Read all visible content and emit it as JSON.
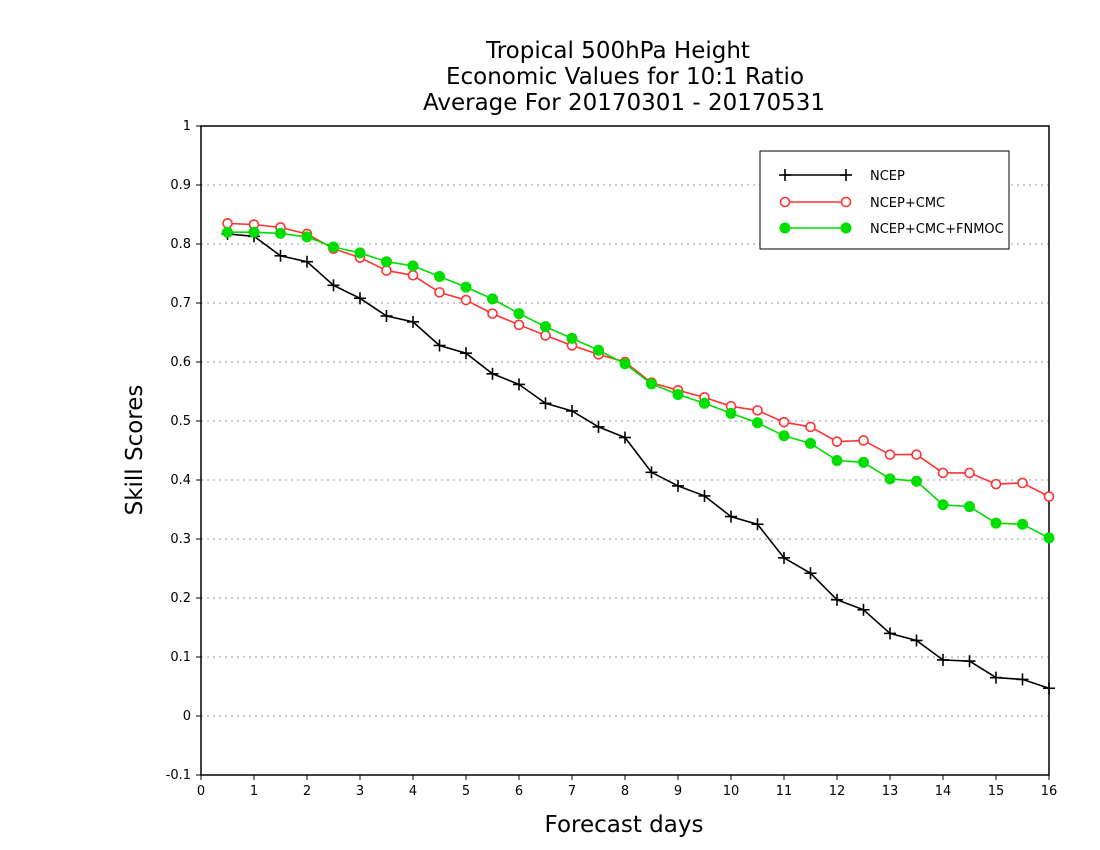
{
  "chart_data": {
    "type": "line",
    "title": [
      "Tropical 500hPa Height",
      "Economic Values for 10:1 Ratio",
      "Average For 20170301 - 20170531"
    ],
    "xlabel": "Forecast days",
    "ylabel": "Skill Scores",
    "xlim": [
      0,
      16
    ],
    "ylim": [
      -0.1,
      1
    ],
    "xticks": [
      "0",
      "1",
      "2",
      "3",
      "4",
      "5",
      "6",
      "7",
      "8",
      "9",
      "10",
      "11",
      "12",
      "13",
      "14",
      "15",
      "16"
    ],
    "yticks": [
      "-0.1",
      "0",
      "0.1",
      "0.2",
      "0.3",
      "0.4",
      "0.5",
      "0.6",
      "0.7",
      "0.8",
      "0.9",
      "1"
    ],
    "grid": "horizontal dotted",
    "legend_position": "top-right",
    "x": [
      0.5,
      1,
      1.5,
      2,
      2.5,
      3,
      3.5,
      4,
      4.5,
      5,
      5.5,
      6,
      6.5,
      7,
      7.5,
      8,
      8.5,
      9,
      9.5,
      10,
      10.5,
      11,
      11.5,
      12,
      12.5,
      13,
      13.5,
      14,
      14.5,
      15,
      15.5,
      16
    ],
    "series": [
      {
        "name": "NCEP",
        "color": "#000000",
        "marker": "plus",
        "values": [
          0.817,
          0.813,
          0.78,
          0.77,
          0.73,
          0.708,
          0.678,
          0.668,
          0.628,
          0.615,
          0.58,
          0.562,
          0.53,
          0.517,
          0.49,
          0.472,
          0.413,
          0.39,
          0.373,
          0.338,
          0.325,
          0.268,
          0.242,
          0.197,
          0.18,
          0.14,
          0.128,
          0.095,
          0.093,
          0.065,
          0.062,
          0.047
        ]
      },
      {
        "name": "NCEP+CMC",
        "color": "#ff3333",
        "marker": "open-circle",
        "values": [
          0.835,
          0.833,
          0.828,
          0.817,
          0.792,
          0.777,
          0.755,
          0.747,
          0.718,
          0.705,
          0.682,
          0.663,
          0.645,
          0.628,
          0.613,
          0.6,
          0.565,
          0.552,
          0.54,
          0.525,
          0.518,
          0.498,
          0.49,
          0.465,
          0.467,
          0.443,
          0.443,
          0.412,
          0.412,
          0.393,
          0.395,
          0.372
        ]
      },
      {
        "name": "NCEP+CMC+FNMOC",
        "color": "#00dd00",
        "marker": "filled-circle",
        "values": [
          0.82,
          0.82,
          0.818,
          0.812,
          0.795,
          0.785,
          0.77,
          0.763,
          0.745,
          0.727,
          0.707,
          0.682,
          0.66,
          0.64,
          0.62,
          0.597,
          0.563,
          0.545,
          0.53,
          0.513,
          0.497,
          0.475,
          0.462,
          0.433,
          0.43,
          0.402,
          0.398,
          0.358,
          0.355,
          0.327,
          0.325,
          0.302
        ]
      }
    ]
  }
}
